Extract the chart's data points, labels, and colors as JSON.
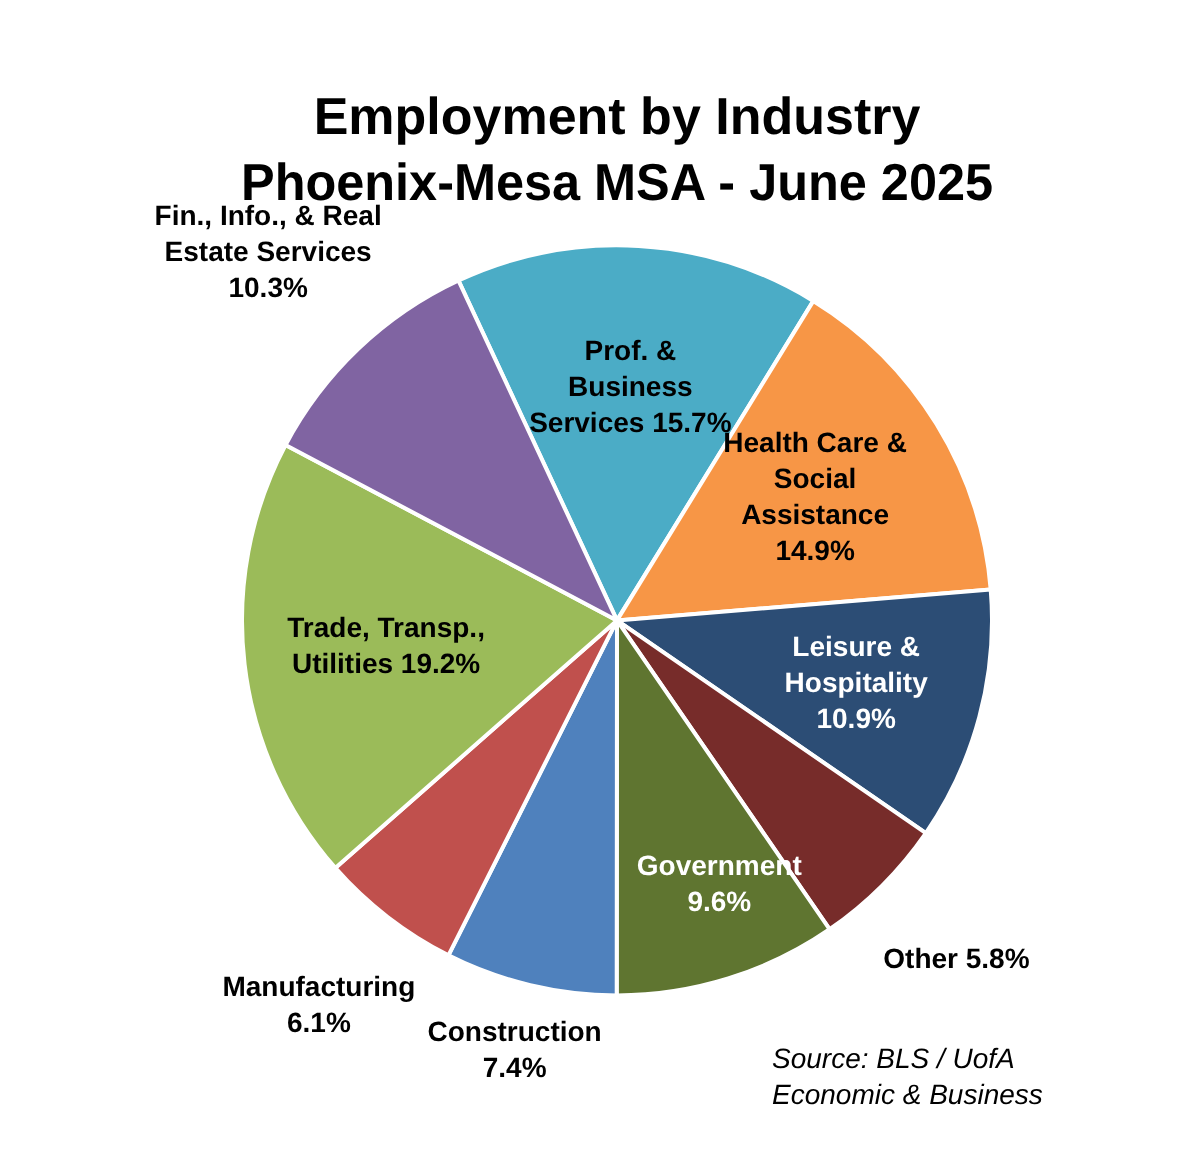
{
  "chart_data": {
    "type": "pie",
    "title": "Employment by Industry",
    "subtitle": "Phoenix-Mesa MSA - June 2025",
    "categories": [
      "Prof. & Business Services",
      "Health Care & Social Assistance",
      "Leisure & Hospitality",
      "Other",
      "Government",
      "Construction",
      "Manufacturing",
      "Trade, Transp., Utilities",
      "Fin., Info., & Real Estate Services"
    ],
    "values": [
      15.7,
      14.9,
      10.9,
      5.8,
      9.6,
      7.4,
      6.1,
      19.2,
      10.3
    ],
    "colors": [
      "#4bacc6",
      "#f79646",
      "#2c4d75",
      "#772c2a",
      "#5f7530",
      "#4f81bd",
      "#c0504d",
      "#9bbb59",
      "#8064a2"
    ],
    "value_labels": [
      "15.7%",
      "14.9%",
      "10.9%",
      "5.8%",
      "9.6%",
      "7.4%",
      "6.1%",
      "19.2%",
      "10.3%"
    ],
    "legend": false,
    "annotations": [
      "Source: BLS / UofA Economic & Business"
    ]
  }
}
